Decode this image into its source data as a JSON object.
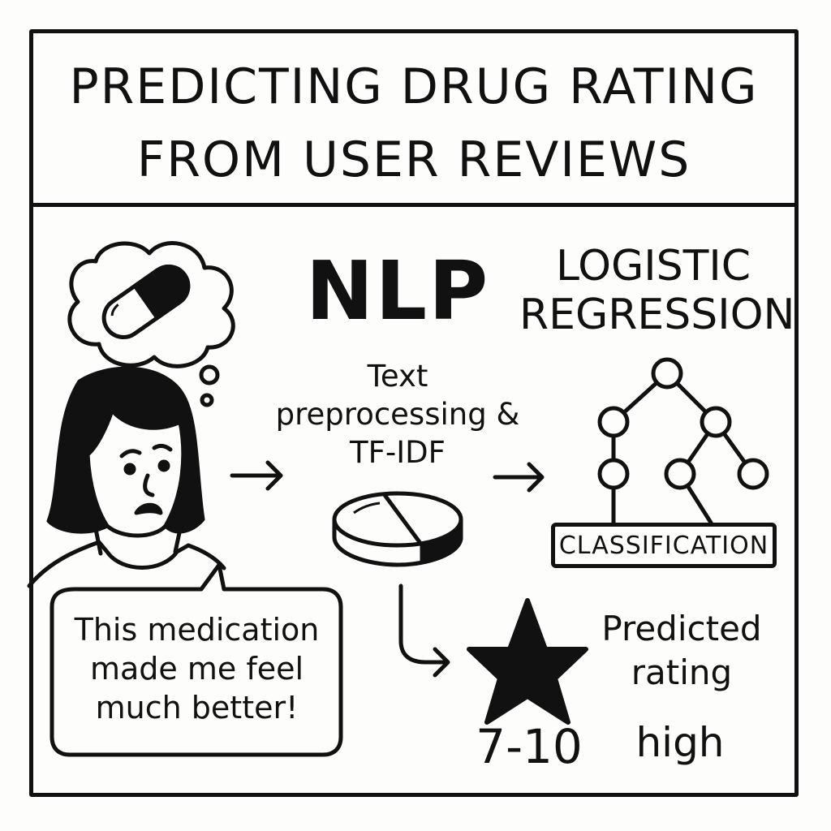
{
  "title": "Predicting drug rating from user reviews",
  "nlp_label": "NLP",
  "model_label": "Logistic regression",
  "preprocessing_label": "Text preprocessing & TF-IDF",
  "classification_label": "Classification",
  "review_text": "This medication made me feel much better!",
  "prediction": {
    "label": "Predicted rating",
    "range": "7-10",
    "level": "high"
  },
  "icons": [
    "pill-icon",
    "thought-bubble",
    "person-icon",
    "arrow-icon",
    "pill-tablet-icon",
    "tree-icon",
    "star-icon"
  ]
}
